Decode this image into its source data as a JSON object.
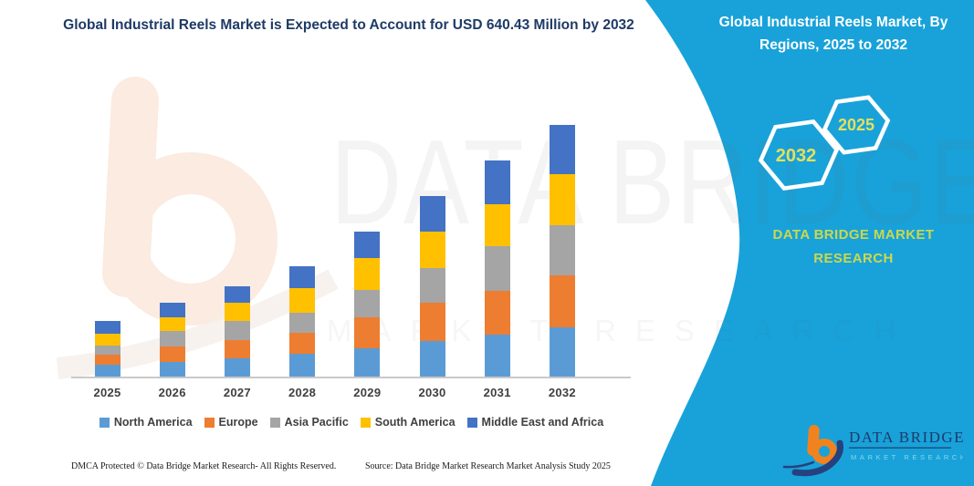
{
  "header": {
    "title": "Global Industrial Reels Market is Expected to Account for USD 640.43 Million by 2032"
  },
  "side_panel": {
    "heading": "Global Industrial Reels Market, By Regions, 2025 to 2032",
    "hexagons": [
      {
        "label": "2032"
      },
      {
        "label": "2025"
      }
    ],
    "brand_line1": "DATA BRIDGE MARKET",
    "brand_line2": "RESEARCH",
    "logo": {
      "line1": "DATA BRIDGE",
      "line2": "MARKET RESEARCH"
    }
  },
  "watermark": {
    "text_large": "DATA BRIDGE",
    "text_small": "MARKET RESEARCH"
  },
  "footer": {
    "left": "DMCA Protected © Data Bridge Market Research-  All Rights Reserved.",
    "source": "Source: Data Bridge Market Research  Market Analysis Study 2025"
  },
  "colors": {
    "panel_teal": "#18A2D9",
    "title_navy": "#1E3A66",
    "accent_yellow": "#CBD84E",
    "hexagon_year_yellow": "#E4E05C",
    "axis_gray": "#C9C9C9",
    "label_gray": "#404040",
    "logo_orange": "#F0831F",
    "logo_navy": "#26417E"
  },
  "chart_data": {
    "type": "bar",
    "stacked": true,
    "unit": "USD Million",
    "title": "Global Industrial Reels Market, By Regions, 2025 to 2032",
    "xlabel": "",
    "ylabel": "",
    "value_axis_visible": false,
    "grid": false,
    "legend_position": "bottom",
    "categories": [
      "2025",
      "2026",
      "2027",
      "2028",
      "2029",
      "2030",
      "2031",
      "2032"
    ],
    "series": [
      {
        "name": "North America",
        "color": "#5B9BD5",
        "values": [
          29,
          37,
          46,
          58,
          73,
          91,
          107,
          126
        ]
      },
      {
        "name": "Europe",
        "color": "#ED7D31",
        "values": [
          27,
          39,
          46,
          54,
          77,
          97,
          112,
          131
        ]
      },
      {
        "name": "Asia Pacific",
        "color": "#A5A5A5",
        "values": [
          23,
          39,
          50,
          50,
          70,
          89,
          112,
          129
        ]
      },
      {
        "name": "South America",
        "color": "#FFC000",
        "values": [
          31,
          35,
          46,
          62,
          81,
          93,
          107,
          130
        ]
      },
      {
        "name": "Middle East and Africa",
        "color": "#4472C4",
        "values": [
          31,
          37,
          42,
          56,
          67,
          89,
          113,
          124.43
        ]
      }
    ],
    "totals": [
      141,
      187,
      230,
      280,
      368,
      459,
      551,
      640.43
    ],
    "highlight_total_2032": 640.43
  }
}
